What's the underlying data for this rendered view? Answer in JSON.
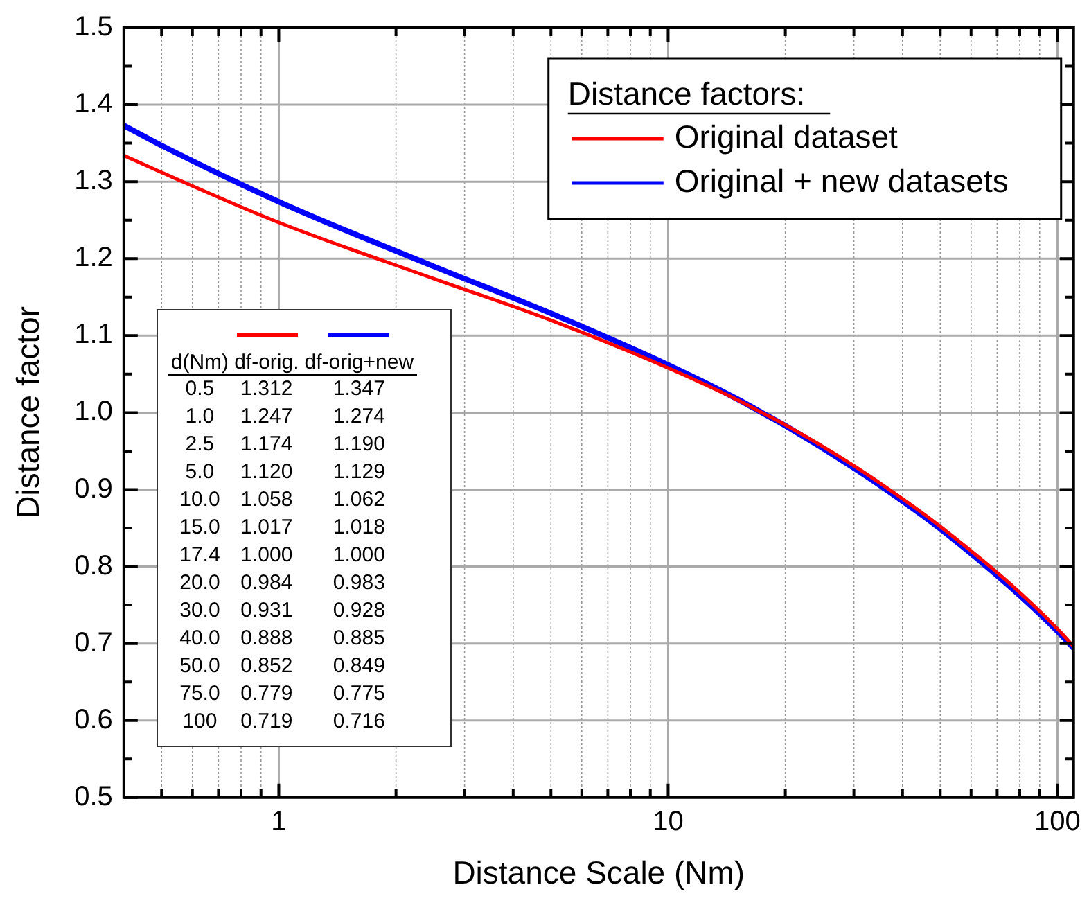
{
  "chart_data": {
    "type": "line",
    "xlabel": "Distance Scale (Nm)",
    "ylabel": "Distance factor",
    "legend_title": "Distance factors:",
    "legend": "top right",
    "log": "x",
    "grid": true,
    "xlim": [
      0.4,
      110
    ],
    "xticks": [
      {
        "value": 0.5,
        "label": null
      },
      {
        "value": 0.6,
        "label": null
      },
      {
        "value": 0.7,
        "label": null
      },
      {
        "value": 0.8,
        "label": null
      },
      {
        "value": 0.9,
        "label": null
      },
      1,
      {
        "value": 2,
        "label": null
      },
      {
        "value": 3,
        "label": null
      },
      {
        "value": 4,
        "label": null
      },
      {
        "value": 5,
        "label": null
      },
      {
        "value": 6,
        "label": null
      },
      {
        "value": 7,
        "label": null
      },
      {
        "value": 8,
        "label": null
      },
      {
        "value": 9,
        "label": null
      },
      10,
      {
        "value": 20,
        "label": null
      },
      {
        "value": 30,
        "label": null
      },
      {
        "value": 40,
        "label": null
      },
      {
        "value": 50,
        "label": null
      },
      {
        "value": 60,
        "label": null
      },
      {
        "value": 70,
        "label": null
      },
      {
        "value": 80,
        "label": null
      },
      {
        "value": 90,
        "label": null
      },
      100
    ],
    "ylim": [
      0.5,
      1.5
    ],
    "yticks": [
      0.5,
      {
        "value": 0.55,
        "label": null
      },
      0.6,
      {
        "value": 0.65,
        "label": null
      },
      0.7,
      {
        "value": 0.75,
        "label": null
      },
      0.8,
      {
        "value": 0.85,
        "label": null
      },
      0.9,
      {
        "value": 0.95,
        "label": null
      },
      {
        "value": 1,
        "label": "1.0"
      },
      {
        "value": 1.05,
        "label": null
      },
      1.1,
      {
        "value": 1.15,
        "label": null
      },
      1.2,
      {
        "value": 1.25,
        "label": null
      },
      1.3,
      {
        "value": 1.35,
        "label": null
      },
      1.4,
      {
        "value": 1.45,
        "label": null
      },
      1.5
    ],
    "x": [
      0.4,
      0.5,
      1,
      2.5,
      5,
      10,
      15,
      17.4,
      20,
      30,
      40,
      50,
      75,
      100,
      110
    ],
    "series": [
      {
        "name": "Original dataset",
        "color": "#ff0000",
        "values": [
          1.334,
          1.312,
          1.247,
          1.174,
          1.12,
          1.058,
          1.017,
          1.0,
          0.984,
          0.931,
          0.888,
          0.852,
          0.779,
          0.719,
          0.696
        ]
      },
      {
        "name": "Original + new datasets",
        "color": "#0000ff",
        "values": [
          1.373,
          1.347,
          1.274,
          1.19,
          1.129,
          1.062,
          1.018,
          1.0,
          0.983,
          0.928,
          0.885,
          0.849,
          0.775,
          0.716,
          0.694
        ]
      }
    ],
    "annotations": [
      "d(Nm)",
      "df-orig.",
      "df-orig+new",
      "0.5",
      "1.312",
      "1.347",
      "1.0",
      "1.247",
      "1.274",
      "2.5",
      "1.174",
      "1.190",
      "5.0",
      "1.120",
      "1.129",
      "10.0",
      "1.058",
      "1.062",
      "15.0",
      "1.017",
      "1.018",
      "17.4",
      "1.000",
      "1.000",
      "20.0",
      "0.984",
      "0.983",
      "30.0",
      "0.931",
      "0.928",
      "40.0",
      "0.888",
      "0.885",
      "50.0",
      "0.852",
      "0.849",
      "75.0",
      "0.779",
      "0.775",
      "100",
      "0.719",
      "0.716"
    ]
  }
}
